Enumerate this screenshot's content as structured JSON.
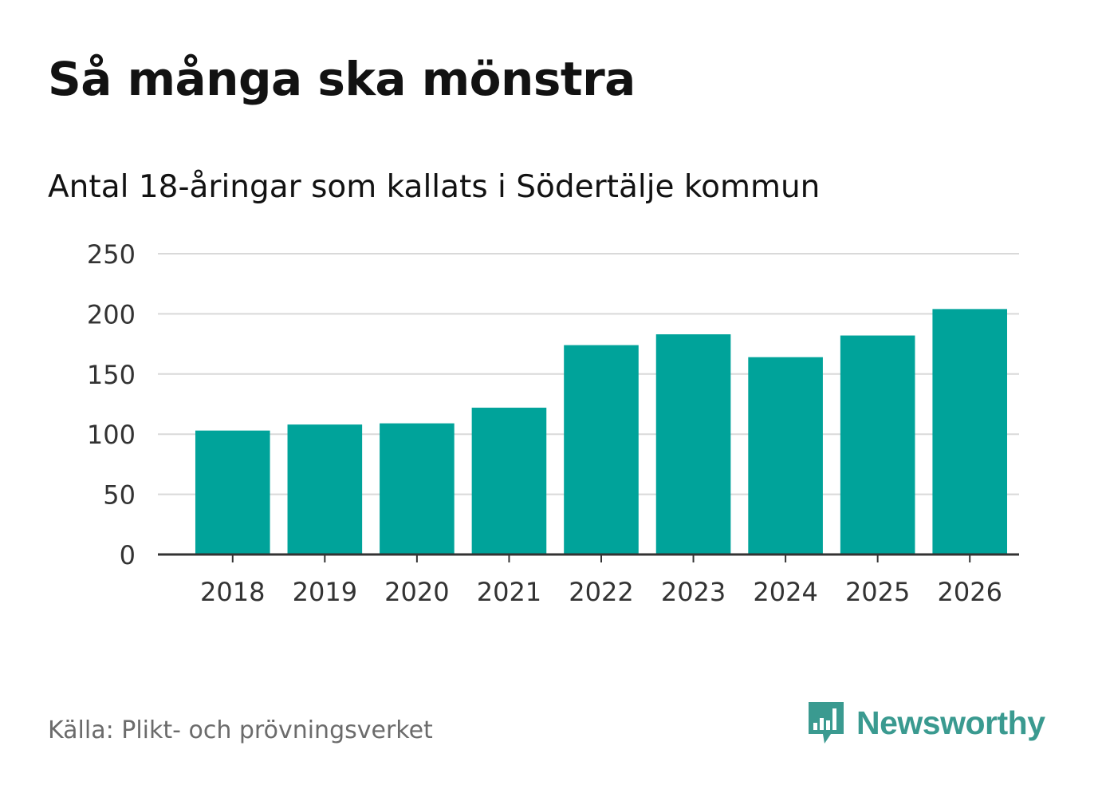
{
  "title": "Så många ska mönstra",
  "subtitle": "Antal 18-åringar som kallats i Södertälje kommun",
  "source": "Källa: Plikt- och prövningsverket",
  "brand": {
    "name": "Newsworthy",
    "logo_icon": "newsworthy-bar-chart-speech-bubble-icon",
    "color": "#3a9a90"
  },
  "colors": {
    "bar": "#00a39a",
    "grid": "#d9d9d9",
    "axis": "#333333",
    "tick_text": "#333333"
  },
  "chart_data": {
    "type": "bar",
    "title": "Så många ska mönstra",
    "subtitle": "Antal 18-åringar som kallats i Södertälje kommun",
    "xlabel": "",
    "ylabel": "",
    "categories": [
      "2018",
      "2019",
      "2020",
      "2021",
      "2022",
      "2023",
      "2024",
      "2025",
      "2026"
    ],
    "values": [
      103,
      108,
      109,
      122,
      174,
      183,
      164,
      182,
      204
    ],
    "ylim": [
      0,
      250
    ],
    "yticks": [
      0,
      50,
      100,
      150,
      200,
      250
    ],
    "grid": true,
    "legend": "none"
  }
}
